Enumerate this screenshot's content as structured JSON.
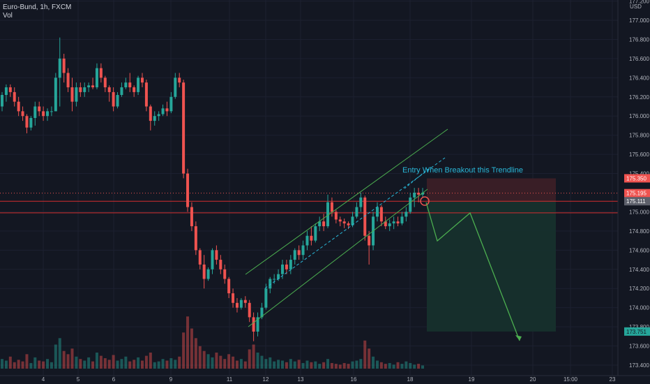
{
  "header": {
    "symbol_line": "Euro-Bund, 1h, FXCM",
    "volume_label": "Vol"
  },
  "axis": {
    "currency": "USD",
    "price_ticks": [
      "177.200",
      "177.000",
      "176.800",
      "176.600",
      "176.400",
      "176.200",
      "176.000",
      "175.800",
      "175.600",
      "175.400",
      "175.000",
      "174.800",
      "174.600",
      "174.400",
      "174.200",
      "174.000",
      "173.800",
      "173.600",
      "173.400"
    ],
    "time_labels": [
      "4",
      "5",
      "6",
      "9",
      "11",
      "12",
      "13",
      "16",
      "18",
      "19",
      "20",
      "15:00",
      "23"
    ]
  },
  "price_labels": {
    "target_top": "175.350",
    "last": "175.195",
    "entry": "175.111",
    "target_bottom": "173.751"
  },
  "annotation": {
    "text": "Entry When Breakout this Trendline"
  },
  "colors": {
    "background": "#131722",
    "up": "#26a69a",
    "down": "#ef5350",
    "channel": "#4caf50",
    "annotation": "#2ab8d9",
    "stop_zone": "#3b1f27",
    "target_zone": "#16302d",
    "red_line": "#d32f2f"
  },
  "chart_data": {
    "type": "candlestick",
    "y_range": [
      173.32,
      177.25
    ],
    "levels": {
      "horizontal_red_1": 175.111,
      "horizontal_red_2": 174.99,
      "last_price": 175.195
    },
    "candles": [
      [
        176.1,
        176.25,
        176.05,
        176.22
      ],
      [
        176.22,
        176.33,
        176.15,
        176.3
      ],
      [
        176.3,
        176.33,
        176.2,
        176.25
      ],
      [
        176.25,
        176.3,
        176.1,
        176.15
      ],
      [
        176.15,
        176.2,
        176.0,
        176.05
      ],
      [
        176.05,
        176.1,
        175.95,
        176.0
      ],
      [
        176.0,
        176.02,
        175.82,
        175.88
      ],
      [
        175.88,
        176.0,
        175.85,
        175.98
      ],
      [
        175.98,
        176.15,
        175.9,
        176.1
      ],
      [
        176.1,
        176.15,
        176.0,
        176.05
      ],
      [
        176.05,
        176.1,
        175.95,
        176.0
      ],
      [
        176.0,
        176.08,
        175.95,
        176.05
      ],
      [
        176.05,
        176.1,
        176.0,
        176.05
      ],
      [
        176.05,
        176.45,
        176.05,
        176.4
      ],
      [
        176.4,
        176.82,
        176.1,
        176.6
      ],
      [
        176.6,
        176.65,
        176.35,
        176.45
      ],
      [
        176.45,
        176.5,
        176.25,
        176.3
      ],
      [
        176.3,
        176.4,
        176.05,
        176.15
      ],
      [
        176.15,
        176.35,
        176.1,
        176.3
      ],
      [
        176.3,
        176.35,
        176.2,
        176.25
      ],
      [
        176.25,
        176.35,
        176.2,
        176.3
      ],
      [
        176.3,
        176.35,
        176.25,
        176.32
      ],
      [
        176.32,
        176.4,
        176.28,
        176.3
      ],
      [
        176.3,
        176.55,
        176.28,
        176.5
      ],
      [
        176.5,
        176.55,
        176.35,
        176.4
      ],
      [
        176.4,
        176.42,
        176.25,
        176.3
      ],
      [
        176.3,
        176.32,
        176.15,
        176.25
      ],
      [
        176.25,
        176.3,
        176.05,
        176.1
      ],
      [
        176.1,
        176.25,
        176.08,
        176.22
      ],
      [
        176.22,
        176.35,
        176.2,
        176.3
      ],
      [
        176.3,
        176.4,
        176.28,
        176.35
      ],
      [
        176.35,
        176.45,
        176.25,
        176.3
      ],
      [
        176.3,
        176.32,
        176.2,
        176.25
      ],
      [
        176.25,
        176.42,
        176.22,
        176.4
      ],
      [
        176.4,
        176.45,
        176.3,
        176.35
      ],
      [
        176.35,
        176.38,
        176.05,
        176.1
      ],
      [
        176.1,
        176.12,
        175.85,
        175.95
      ],
      [
        175.95,
        176.05,
        175.9,
        176.0
      ],
      [
        176.0,
        176.05,
        175.95,
        176.02
      ],
      [
        176.02,
        176.12,
        176.0,
        176.08
      ],
      [
        176.08,
        176.15,
        176.0,
        176.05
      ],
      [
        176.05,
        176.25,
        176.03,
        176.2
      ],
      [
        176.2,
        176.45,
        176.18,
        176.4
      ],
      [
        176.4,
        176.45,
        176.3,
        176.35
      ],
      [
        176.35,
        176.38,
        175.35,
        175.4
      ],
      [
        175.4,
        175.45,
        175.0,
        175.05
      ],
      [
        175.05,
        175.1,
        174.8,
        174.85
      ],
      [
        174.85,
        174.9,
        174.55,
        174.6
      ],
      [
        174.6,
        174.62,
        174.4,
        174.45
      ],
      [
        174.45,
        174.55,
        174.2,
        174.3
      ],
      [
        174.3,
        174.42,
        174.28,
        174.4
      ],
      [
        174.4,
        174.62,
        174.35,
        174.6
      ],
      [
        174.6,
        174.65,
        174.45,
        174.5
      ],
      [
        174.5,
        174.55,
        174.35,
        174.4
      ],
      [
        174.4,
        174.45,
        174.25,
        174.3
      ],
      [
        174.3,
        174.32,
        174.1,
        174.15
      ],
      [
        174.15,
        174.2,
        174.0,
        174.05
      ],
      [
        174.05,
        174.1,
        173.95,
        174.0
      ],
      [
        174.0,
        174.1,
        173.98,
        174.08
      ],
      [
        174.08,
        174.12,
        174.0,
        174.05
      ],
      [
        174.05,
        174.08,
        173.85,
        173.9
      ],
      [
        173.9,
        173.95,
        173.65,
        173.75
      ],
      [
        173.75,
        173.95,
        173.7,
        173.9
      ],
      [
        173.9,
        174.05,
        173.88,
        174.0
      ],
      [
        174.0,
        174.25,
        173.98,
        174.2
      ],
      [
        174.2,
        174.32,
        174.15,
        174.3
      ],
      [
        174.3,
        174.35,
        174.25,
        174.3
      ],
      [
        174.3,
        174.4,
        174.28,
        174.35
      ],
      [
        174.35,
        174.5,
        174.3,
        174.45
      ],
      [
        174.45,
        174.5,
        174.35,
        174.4
      ],
      [
        174.4,
        174.55,
        174.35,
        174.5
      ],
      [
        174.5,
        174.62,
        174.45,
        174.6
      ],
      [
        174.6,
        174.65,
        174.5,
        174.55
      ],
      [
        174.55,
        174.7,
        174.5,
        174.65
      ],
      [
        174.65,
        174.8,
        174.6,
        174.75
      ],
      [
        174.75,
        174.85,
        174.65,
        174.7
      ],
      [
        174.7,
        174.88,
        174.68,
        174.85
      ],
      [
        174.85,
        174.95,
        174.8,
        174.9
      ],
      [
        174.9,
        174.98,
        174.8,
        174.85
      ],
      [
        174.85,
        175.18,
        174.83,
        175.1
      ],
      [
        175.1,
        175.15,
        174.95,
        175.0
      ],
      [
        175.0,
        175.02,
        174.88,
        174.92
      ],
      [
        174.92,
        174.95,
        174.85,
        174.9
      ],
      [
        174.9,
        174.93,
        174.83,
        174.88
      ],
      [
        174.88,
        174.9,
        174.82,
        174.86
      ],
      [
        174.86,
        175.0,
        174.84,
        174.95
      ],
      [
        174.95,
        175.1,
        174.93,
        175.05
      ],
      [
        175.05,
        175.2,
        175.0,
        175.15
      ],
      [
        175.15,
        175.17,
        174.7,
        174.75
      ],
      [
        174.75,
        174.8,
        174.45,
        174.65
      ],
      [
        174.65,
        175.0,
        174.6,
        174.95
      ],
      [
        174.95,
        175.1,
        174.9,
        175.05
      ],
      [
        175.05,
        175.07,
        174.85,
        174.9
      ],
      [
        174.9,
        174.95,
        174.82,
        174.85
      ],
      [
        174.85,
        174.92,
        174.8,
        174.88
      ],
      [
        174.88,
        174.95,
        174.82,
        174.9
      ],
      [
        174.9,
        174.95,
        174.85,
        174.88
      ],
      [
        174.88,
        175.0,
        174.86,
        174.95
      ],
      [
        174.95,
        175.05,
        174.9,
        175.0
      ],
      [
        175.0,
        175.2,
        174.98,
        175.15
      ],
      [
        175.15,
        175.25,
        175.05,
        175.2
      ],
      [
        175.2,
        175.25,
        175.1,
        175.18
      ],
      [
        175.18,
        175.25,
        175.15,
        175.2
      ]
    ],
    "volume": [
      12,
      10,
      15,
      8,
      11,
      9,
      18,
      7,
      14,
      10,
      9,
      12,
      8,
      30,
      38,
      22,
      18,
      25,
      15,
      12,
      10,
      14,
      9,
      20,
      16,
      13,
      11,
      17,
      10,
      12,
      15,
      9,
      11,
      14,
      10,
      16,
      20,
      8,
      9,
      12,
      10,
      13,
      11,
      15,
      45,
      65,
      50,
      38,
      28,
      22,
      18,
      14,
      20,
      16,
      12,
      18,
      15,
      10,
      12,
      9,
      24,
      30,
      20,
      16,
      12,
      14,
      9,
      11,
      10,
      8,
      12,
      9,
      11,
      7,
      10,
      8,
      9,
      6,
      8,
      12,
      7,
      6,
      5,
      7,
      6,
      9,
      10,
      12,
      35,
      25,
      15,
      10,
      8,
      6,
      7,
      5,
      8,
      6,
      9,
      7,
      5,
      6,
      4
    ]
  }
}
